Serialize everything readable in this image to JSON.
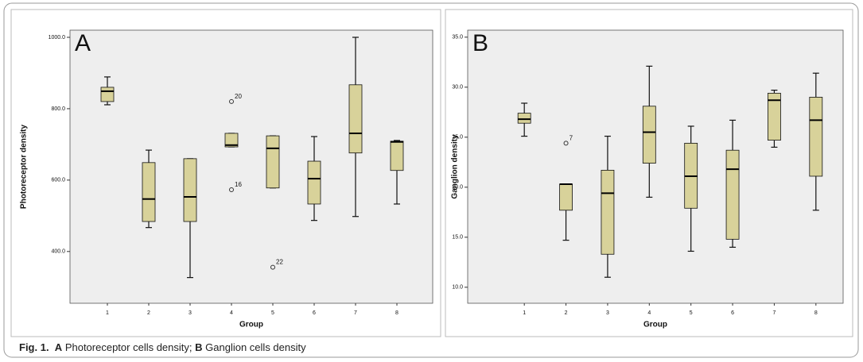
{
  "chart_data": [
    {
      "type": "boxplot",
      "annotation": "A",
      "xlabel": "Group",
      "ylabel": "Photoreceptor density",
      "categories": [
        "1",
        "2",
        "3",
        "4",
        "5",
        "6",
        "7",
        "8"
      ],
      "color": "#d8d29a",
      "ylim": [
        255,
        1020
      ],
      "yticks": [
        {
          "value": 400,
          "label": "400.0"
        },
        {
          "value": 600,
          "label": "600.0"
        },
        {
          "value": 800,
          "label": "800.0"
        },
        {
          "value": 1000,
          "label": "1000.0"
        }
      ],
      "boxes": [
        {
          "min": 811,
          "q1": 820,
          "median": 849,
          "q3": 860,
          "max": 889,
          "outliers": []
        },
        {
          "min": 467,
          "q1": 484,
          "median": 547,
          "q3": 649,
          "max": 684,
          "outliers": []
        },
        {
          "min": 327,
          "q1": 484,
          "median": 553,
          "q3": 660,
          "max": 660,
          "outliers": []
        },
        {
          "min": 693,
          "q1": 693,
          "median": 698,
          "q3": 731,
          "max": 731,
          "outliers": [
            {
              "value": 820,
              "label": "20"
            },
            {
              "value": 573,
              "label": "16"
            }
          ]
        },
        {
          "min": 578,
          "q1": 578,
          "median": 689,
          "q3": 724,
          "max": 724,
          "outliers": [
            {
              "value": 356,
              "label": "22"
            }
          ]
        },
        {
          "min": 487,
          "q1": 533,
          "median": 604,
          "q3": 653,
          "max": 722,
          "outliers": []
        },
        {
          "min": 498,
          "q1": 676,
          "median": 731,
          "q3": 867,
          "max": 1000,
          "outliers": []
        },
        {
          "min": 533,
          "q1": 627,
          "median": 707,
          "q3": 709,
          "max": 711,
          "outliers": []
        }
      ]
    },
    {
      "type": "boxplot",
      "annotation": "B",
      "xlabel": "Group",
      "ylabel": "Ganglion density",
      "categories": [
        "1",
        "2",
        "3",
        "4",
        "5",
        "6",
        "7",
        "8"
      ],
      "color": "#d8d29a",
      "ylim": [
        8.4,
        35.7
      ],
      "yticks": [
        {
          "value": 10,
          "label": "10.0"
        },
        {
          "value": 15,
          "label": "15.0"
        },
        {
          "value": 20,
          "label": "20.0"
        },
        {
          "value": 25,
          "label": "25.0"
        },
        {
          "value": 30,
          "label": "30.0"
        },
        {
          "value": 35,
          "label": "35.0"
        }
      ],
      "boxes": [
        {
          "min": 25.1,
          "q1": 26.4,
          "median": 26.8,
          "q3": 27.4,
          "max": 28.4,
          "outliers": []
        },
        {
          "min": 14.7,
          "q1": 17.7,
          "median": 20.3,
          "q3": 20.3,
          "max": 20.3,
          "outliers": [
            {
              "value": 24.4,
              "label": "7"
            }
          ]
        },
        {
          "min": 11.0,
          "q1": 13.3,
          "median": 19.4,
          "q3": 21.7,
          "max": 25.1,
          "outliers": []
        },
        {
          "min": 19.0,
          "q1": 22.4,
          "median": 25.5,
          "q3": 28.1,
          "max": 32.1,
          "outliers": []
        },
        {
          "min": 13.6,
          "q1": 17.9,
          "median": 21.1,
          "q3": 24.4,
          "max": 26.1,
          "outliers": []
        },
        {
          "min": 14.0,
          "q1": 14.8,
          "median": 21.8,
          "q3": 23.7,
          "max": 26.7,
          "outliers": []
        },
        {
          "min": 24.0,
          "q1": 24.7,
          "median": 28.7,
          "q3": 29.4,
          "max": 29.7,
          "outliers": []
        },
        {
          "min": 17.7,
          "q1": 21.1,
          "median": 26.7,
          "q3": 29.0,
          "max": 31.4,
          "outliers": []
        }
      ]
    }
  ],
  "caption": {
    "label": "Fig. 1.",
    "a": "A",
    "a_text": "Photoreceptor cells density;",
    "b": "B",
    "b_text": "Ganglion cells density"
  }
}
